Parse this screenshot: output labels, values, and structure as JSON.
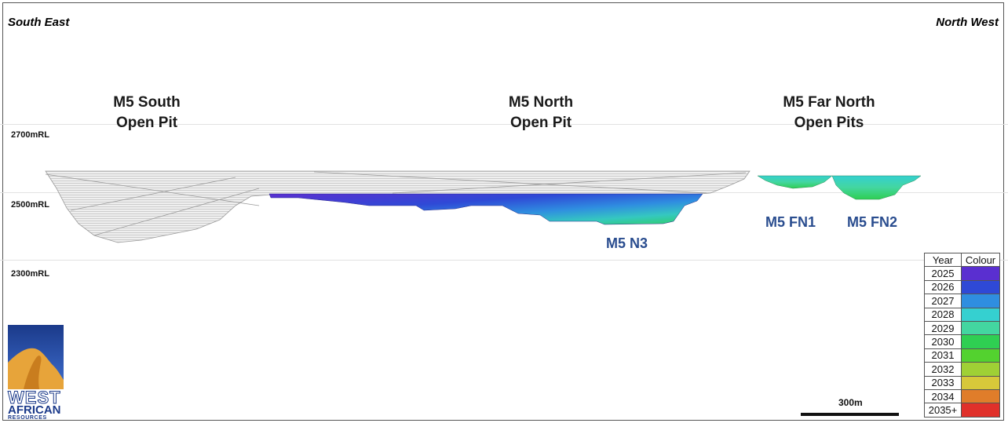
{
  "directions": {
    "left": "South East",
    "right": "North West"
  },
  "pits": [
    {
      "line1": "M5 South",
      "line2": "Open Pit"
    },
    {
      "line1": "M5 North",
      "line2": "Open Pit"
    },
    {
      "line1": "M5 Far North",
      "line2": "Open Pits"
    }
  ],
  "elevations": [
    "2700mRL",
    "2500mRL",
    "2300mRL"
  ],
  "zones": {
    "n3": "M5 N3",
    "fn1": "M5 FN1",
    "fn2": "M5 FN2"
  },
  "legend": {
    "headers": [
      "Year",
      "Colour"
    ],
    "rows": [
      {
        "year": "2025",
        "color": "#5a2fd0"
      },
      {
        "year": "2026",
        "color": "#2f49d6"
      },
      {
        "year": "2027",
        "color": "#2f8ee0"
      },
      {
        "year": "2028",
        "color": "#35d0d0"
      },
      {
        "year": "2029",
        "color": "#43d6a0"
      },
      {
        "year": "2030",
        "color": "#2fcf52"
      },
      {
        "year": "2031",
        "color": "#53d22f"
      },
      {
        "year": "2032",
        "color": "#9fd035"
      },
      {
        "year": "2033",
        "color": "#d7c83a"
      },
      {
        "year": "2034",
        "color": "#e07d2a"
      },
      {
        "year": "2035+",
        "color": "#e0302a"
      }
    ]
  },
  "scale": {
    "label": "300m"
  },
  "logo": {
    "line1": "WEST",
    "line2": "AFRICAN",
    "line3": "RESOURCES"
  }
}
